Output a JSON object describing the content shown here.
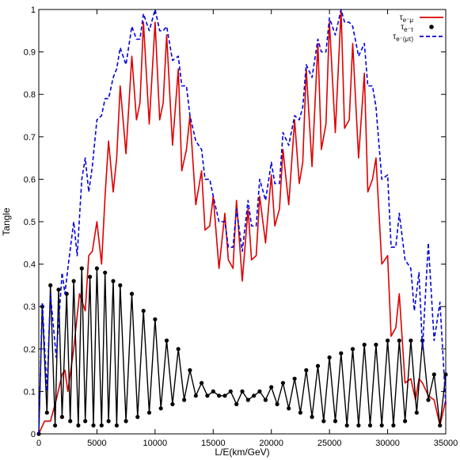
{
  "chart_data": {
    "type": "line",
    "title": "",
    "xlabel": "L/E(km/GeV)",
    "ylabel": "Tangle",
    "xlim": [
      0,
      35000
    ],
    "ylim": [
      0,
      1
    ],
    "x_ticks": [
      "0",
      "5000",
      "10000",
      "15000",
      "20000",
      "25000",
      "30000",
      "35000"
    ],
    "y_ticks": [
      "0",
      "0.1",
      "0.2",
      "0.3",
      "0.4",
      "0.5",
      "0.6",
      "0.7",
      "0.8",
      "0.9",
      "1"
    ],
    "legend_position": "top-right",
    "series": [
      {
        "name": "τ_{e⁻μ}",
        "legend_main": "τ",
        "legend_sub": "e⁻μ",
        "color": "#dd0000",
        "style": "solid",
        "x": [
          0,
          500,
          1000,
          1500,
          2000,
          2250,
          2500,
          3000,
          3500,
          4000,
          4300,
          4600,
          5000,
          5400,
          5700,
          6000,
          6400,
          6700,
          7000,
          7500,
          8000,
          8400,
          8700,
          9000,
          9500,
          10000,
          10400,
          10700,
          11000,
          11500,
          12000,
          12300,
          12700,
          13000,
          13500,
          14000,
          14300,
          14700,
          15000,
          15500,
          16000,
          16300,
          16700,
          17000,
          17500,
          18000,
          18300,
          18700,
          19000,
          19500,
          20000,
          20300,
          20700,
          21000,
          21500,
          22000,
          22400,
          22700,
          23000,
          23500,
          24000,
          24300,
          24700,
          25000,
          25500,
          26000,
          26300,
          26700,
          27000,
          27500,
          28000,
          28300,
          28700,
          29000,
          29500,
          30000,
          30300,
          30700,
          31000,
          31500,
          32000,
          32400,
          32700,
          33000,
          33500,
          34000,
          34500,
          35000
        ],
        "y": [
          0,
          0.03,
          0.03,
          0.08,
          0.14,
          0.15,
          0.1,
          0.2,
          0.33,
          0.29,
          0.42,
          0.43,
          0.5,
          0.4,
          0.56,
          0.69,
          0.57,
          0.65,
          0.82,
          0.66,
          0.89,
          0.74,
          0.78,
          0.97,
          0.73,
          0.97,
          0.74,
          0.78,
          0.94,
          0.68,
          0.86,
          0.62,
          0.67,
          0.75,
          0.54,
          0.62,
          0.48,
          0.49,
          0.56,
          0.39,
          0.52,
          0.41,
          0.39,
          0.55,
          0.36,
          0.53,
          0.41,
          0.42,
          0.56,
          0.45,
          0.61,
          0.49,
          0.53,
          0.67,
          0.54,
          0.74,
          0.59,
          0.64,
          0.86,
          0.63,
          0.92,
          0.67,
          0.73,
          0.97,
          0.71,
          1.0,
          0.72,
          0.74,
          0.92,
          0.65,
          0.85,
          0.57,
          0.6,
          0.65,
          0.4,
          0.42,
          0.23,
          0.25,
          0.33,
          0.12,
          0.13,
          0.08,
          0.13,
          0.12,
          0.09,
          0.08,
          0.02,
          0.08
        ]
      },
      {
        "name": "τ_{e⁻τ}",
        "legend_main": "τ",
        "legend_sub": "e⁻τ",
        "color": "#000000",
        "style": "points",
        "x": [
          0,
          300,
          700,
          1000,
          1400,
          1700,
          2000,
          2400,
          2700,
          3000,
          3400,
          3700,
          4000,
          4400,
          4700,
          5000,
          5400,
          5700,
          6000,
          6400,
          6700,
          7000,
          7500,
          8000,
          8500,
          9000,
          9500,
          10000,
          10500,
          11000,
          11500,
          12000,
          12500,
          13000,
          13500,
          14000,
          14500,
          15000,
          15500,
          16000,
          16500,
          17000,
          17500,
          18000,
          18500,
          19000,
          19500,
          20000,
          20500,
          21000,
          21500,
          22000,
          22500,
          23000,
          23500,
          24000,
          24500,
          25000,
          25500,
          26000,
          26500,
          27000,
          27500,
          28000,
          28500,
          29000,
          29500,
          30000,
          30500,
          31000,
          31500,
          32000,
          32500,
          33000,
          33500,
          34000,
          34500,
          35000
        ],
        "y": [
          0,
          0.3,
          0.05,
          0.35,
          0.02,
          0.34,
          0.04,
          0.33,
          0.03,
          0.36,
          0.02,
          0.39,
          0.03,
          0.37,
          0.02,
          0.39,
          0.02,
          0.38,
          0.03,
          0.36,
          0.02,
          0.35,
          0.03,
          0.33,
          0.04,
          0.29,
          0.05,
          0.27,
          0.06,
          0.22,
          0.07,
          0.2,
          0.08,
          0.15,
          0.09,
          0.12,
          0.09,
          0.1,
          0.09,
          0.09,
          0.1,
          0.07,
          0.1,
          0.08,
          0.09,
          0.1,
          0.08,
          0.11,
          0.07,
          0.12,
          0.06,
          0.13,
          0.05,
          0.15,
          0.04,
          0.16,
          0.03,
          0.18,
          0.03,
          0.19,
          0.02,
          0.2,
          0.02,
          0.21,
          0.02,
          0.21,
          0.02,
          0.22,
          0.02,
          0.22,
          0.03,
          0.22,
          0.05,
          0.22,
          0.08,
          0.14,
          0.02,
          0.14
        ]
      },
      {
        "name": "τ_{e⁻(μτ)}",
        "legend_main": "τ",
        "legend_sub": "e⁻(μτ)",
        "color": "#0000dd",
        "style": "dashed",
        "x": [
          0,
          300,
          700,
          1000,
          1500,
          2000,
          2250,
          2500,
          3000,
          3300,
          3700,
          4000,
          4300,
          4600,
          5000,
          5400,
          5700,
          6000,
          6400,
          6700,
          7000,
          7500,
          8000,
          8400,
          8700,
          9000,
          9500,
          10000,
          10400,
          10700,
          11000,
          11500,
          12000,
          12300,
          12700,
          13000,
          13500,
          14000,
          14300,
          14700,
          15000,
          15500,
          16000,
          16300,
          16700,
          17000,
          17500,
          18000,
          18300,
          18700,
          19000,
          19500,
          20000,
          20300,
          20700,
          21000,
          21500,
          22000,
          22400,
          22700,
          23000,
          23500,
          24000,
          24300,
          24700,
          25000,
          25500,
          26000,
          26300,
          26700,
          27000,
          27500,
          28000,
          28300,
          28700,
          29000,
          29500,
          30000,
          30300,
          30700,
          31000,
          31500,
          32000,
          32300,
          32700,
          33000,
          33500,
          34000,
          34500,
          35000
        ],
        "y": [
          0,
          0.31,
          0.1,
          0.33,
          0.18,
          0.38,
          0.33,
          0.39,
          0.5,
          0.42,
          0.6,
          0.65,
          0.57,
          0.63,
          0.74,
          0.75,
          0.79,
          0.79,
          0.84,
          0.86,
          0.91,
          0.87,
          0.96,
          0.93,
          0.93,
          0.99,
          0.95,
          1.0,
          0.95,
          0.95,
          0.96,
          0.88,
          0.89,
          0.82,
          0.82,
          0.75,
          0.69,
          0.67,
          0.6,
          0.6,
          0.56,
          0.5,
          0.5,
          0.44,
          0.44,
          0.53,
          0.43,
          0.55,
          0.49,
          0.49,
          0.6,
          0.55,
          0.64,
          0.59,
          0.59,
          0.71,
          0.68,
          0.75,
          0.74,
          0.77,
          0.87,
          0.84,
          0.93,
          0.9,
          0.9,
          0.98,
          0.94,
          1.0,
          0.97,
          0.97,
          0.96,
          0.89,
          0.92,
          0.82,
          0.82,
          0.77,
          0.6,
          0.61,
          0.44,
          0.44,
          0.52,
          0.41,
          0.39,
          0.29,
          0.38,
          0.2,
          0.45,
          0.22,
          0.31,
          0.07
        ]
      }
    ]
  }
}
